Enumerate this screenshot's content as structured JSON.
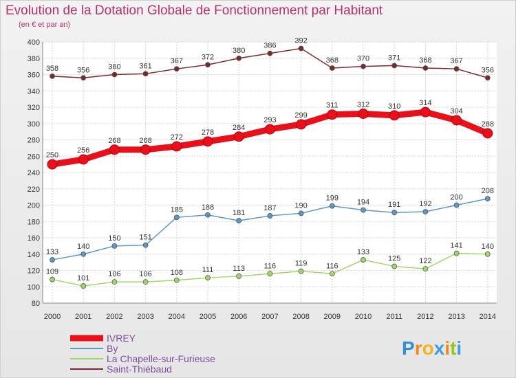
{
  "chart_data": {
    "type": "line",
    "title": "Evolution de la Dotation Globale de Fonctionnement par Habitant",
    "subtitle": "(en € et par an)",
    "xlabel": "",
    "ylabel": "",
    "ylim": [
      80,
      400
    ],
    "yticks": [
      80,
      100,
      120,
      140,
      160,
      180,
      200,
      220,
      240,
      260,
      280,
      300,
      320,
      340,
      360,
      380,
      400
    ],
    "categories": [
      "2000",
      "2001",
      "2002",
      "2003",
      "2004",
      "2005",
      "2006",
      "2007",
      "2008",
      "2009",
      "2010",
      "2011",
      "2012",
      "2013",
      "2014"
    ],
    "grid": true,
    "legend_position": "bottom-left",
    "series": [
      {
        "name": "Saint-Thiébaud",
        "color": "#7a2a2a",
        "emphasis": false,
        "values": [
          358,
          356,
          360,
          361,
          367,
          372,
          380,
          386,
          392,
          368,
          370,
          371,
          368,
          367,
          356
        ]
      },
      {
        "name": "La Chapelle-sur-Furieuse",
        "color": "#9fd86a",
        "emphasis": false,
        "values": [
          109,
          101,
          106,
          106,
          108,
          111,
          113,
          116,
          119,
          116,
          133,
          125,
          122,
          141,
          140
        ]
      },
      {
        "name": "By",
        "color": "#5a98c8",
        "emphasis": false,
        "values": [
          133,
          140,
          150,
          151,
          185,
          188,
          181,
          187,
          190,
          199,
          194,
          191,
          192,
          200,
          208
        ]
      },
      {
        "name": "IVREY",
        "color": "#e8101a",
        "emphasis": true,
        "values": [
          250,
          256,
          268,
          268,
          272,
          278,
          284,
          293,
          299,
          311,
          312,
          310,
          314,
          304,
          288
        ]
      }
    ],
    "legend_order": [
      "IVREY",
      "By",
      "La Chapelle-sur-Furieuse",
      "Saint-Thiébaud"
    ]
  },
  "branding": {
    "letters": [
      "P",
      "r",
      "o",
      "x",
      "i",
      "t",
      "i"
    ],
    "colors": [
      "#2f8fd8",
      "#f08a1c",
      "#f3b51d",
      "#3b9fe0",
      "#f08a1c",
      "#9bc41d",
      "#3b9fe0"
    ]
  }
}
